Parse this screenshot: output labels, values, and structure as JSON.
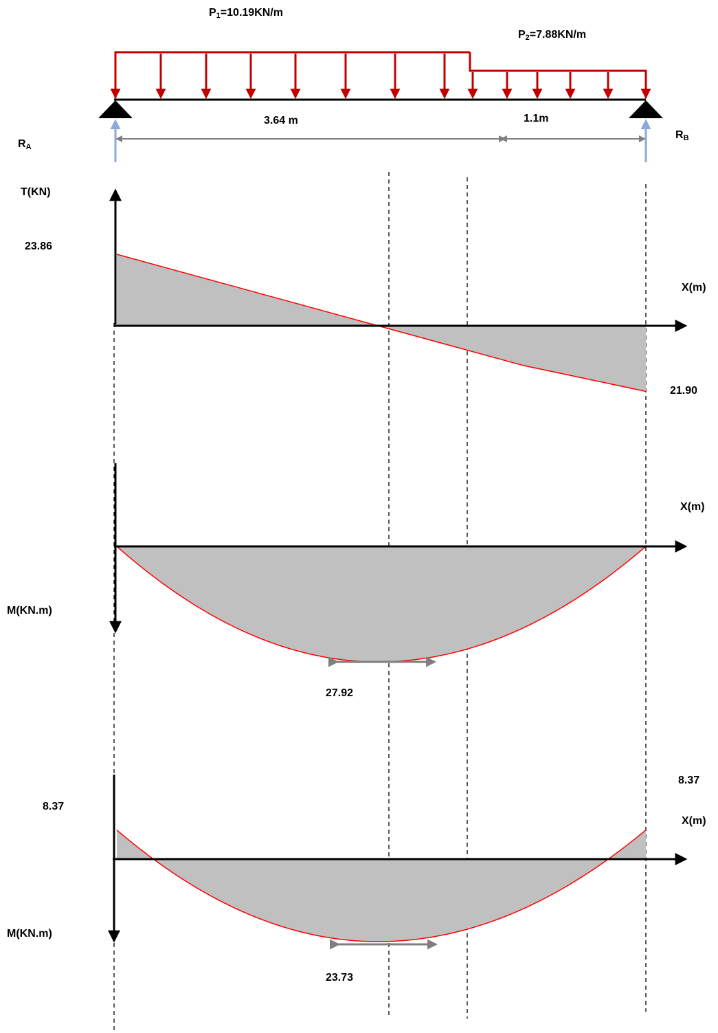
{
  "loads": {
    "p1": {
      "prefix": "P",
      "sub": "1",
      "rest": "=10.19KN/m"
    },
    "p2": {
      "prefix": "P",
      "sub": "2",
      "rest": "=7.88KN/m"
    }
  },
  "spans": {
    "a": "3.64 m",
    "b": "1.1m"
  },
  "reactions": {
    "ra": {
      "prefix": "R",
      "sub": "A"
    },
    "rb": {
      "prefix": "R",
      "sub": "B"
    }
  },
  "shear": {
    "axis_label": "T(KN)",
    "x_label": "X(m)",
    "max_label": "23.86",
    "min_label": "21.90"
  },
  "moment1": {
    "axis_label": "M(KN.m)",
    "x_label": "X(m)",
    "max_label": "27.92"
  },
  "moment2": {
    "axis_label": "M(KN.m)",
    "x_label": "X(m)",
    "left_label": "8.37",
    "right_label": "8.37",
    "max_label": "23.73"
  },
  "colors": {
    "load": "#c00000",
    "curve": "#ff0000",
    "fill": "#c0c0c0",
    "reaction": "#8eaadb",
    "dimension": "#7f7f7f"
  },
  "chart_data": [
    {
      "type": "area",
      "x": [
        0,
        2.34,
        3.64,
        4.74
      ],
      "values": [
        23.86,
        0,
        -13.23,
        -21.9
      ]
    },
    {
      "type": "area",
      "x": [
        0,
        2.34,
        4.74
      ],
      "values": [
        0,
        27.92,
        0
      ]
    },
    {
      "type": "area",
      "x": [
        0,
        2.34,
        4.74
      ],
      "values": [
        8.37,
        -23.73,
        8.37
      ]
    }
  ]
}
